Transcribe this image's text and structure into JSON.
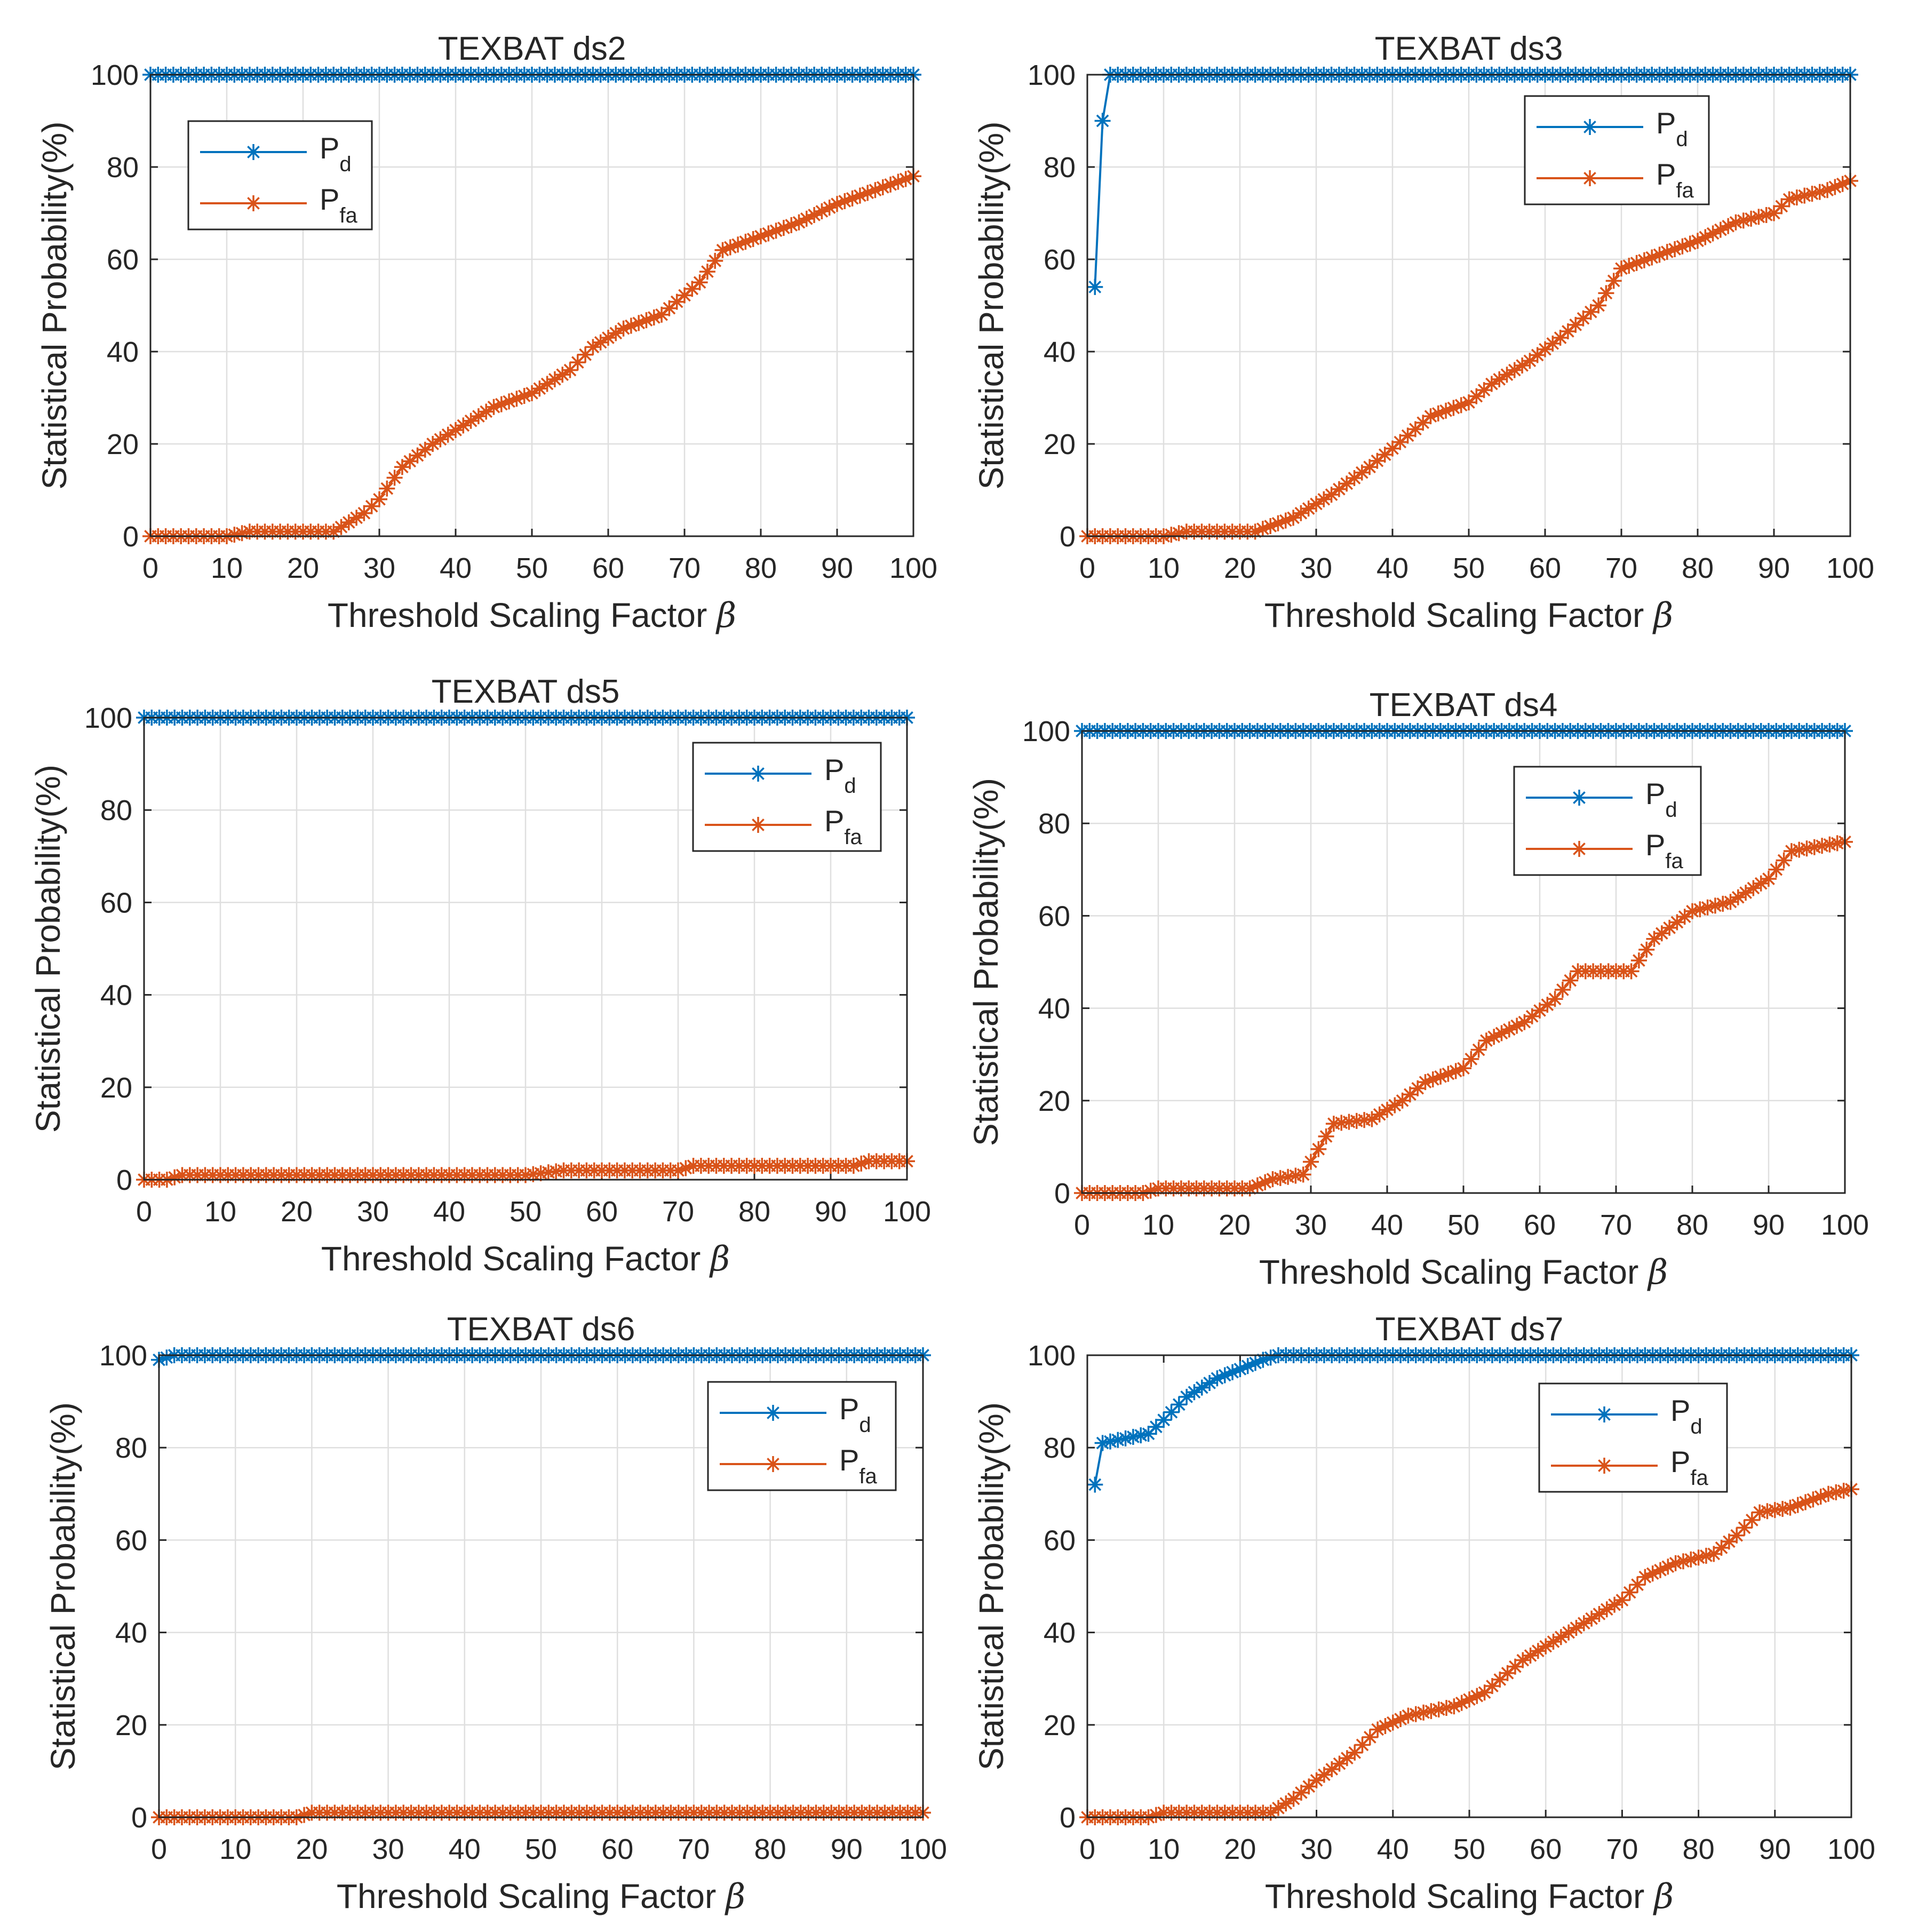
{
  "figure": {
    "accent_colors": {
      "pd": "#0072BD",
      "pfa": "#D95319"
    },
    "marker_icon": "asterisk-marker-icon"
  },
  "chart_data": [
    {
      "type": "line",
      "title": "TEXBAT ds2",
      "xlabel": "Threshold Scaling Factor",
      "xlabel_symbol": "β",
      "ylabel": "Statistical Probability(%)",
      "xlim": [
        0,
        100
      ],
      "ylim": [
        0,
        100
      ],
      "xticks": [
        "0",
        "10",
        "20",
        "30",
        "40",
        "50",
        "60",
        "70",
        "80",
        "90",
        "100"
      ],
      "yticks": [
        "0",
        "20",
        "40",
        "60",
        "80",
        "100"
      ],
      "grid": true,
      "legend_position": "top-left",
      "series": [
        {
          "name": "P",
          "subscript": "d",
          "color": "#0072BD",
          "x": [
            0,
            100
          ],
          "y": [
            100,
            100
          ]
        },
        {
          "name": "P",
          "subscript": "fa",
          "color": "#D95319",
          "x": [
            0,
            10,
            13,
            24,
            28,
            30,
            33,
            37,
            40,
            45,
            50,
            55,
            58,
            62,
            67,
            72,
            75,
            80,
            85,
            90,
            95,
            100
          ],
          "y": [
            0,
            0,
            1,
            1,
            5,
            8,
            15,
            20,
            23,
            28,
            31,
            36,
            41,
            45,
            48,
            55,
            62,
            65,
            68,
            72,
            75,
            78
          ]
        }
      ]
    },
    {
      "type": "line",
      "title": "TEXBAT ds3",
      "xlabel": "Threshold Scaling Factor",
      "xlabel_symbol": "β",
      "ylabel": "Statistical Probability(%)",
      "xlim": [
        0,
        100
      ],
      "ylim": [
        0,
        100
      ],
      "xticks": [
        "0",
        "10",
        "20",
        "30",
        "40",
        "50",
        "60",
        "70",
        "80",
        "90",
        "100"
      ],
      "yticks": [
        "0",
        "20",
        "40",
        "60",
        "80",
        "100"
      ],
      "grid": true,
      "legend_position": "top-right",
      "series": [
        {
          "name": "P",
          "subscript": "d",
          "color": "#0072BD",
          "x": [
            1,
            2,
            3,
            100
          ],
          "y": [
            54,
            90,
            100,
            100
          ]
        },
        {
          "name": "P",
          "subscript": "fa",
          "color": "#D95319",
          "x": [
            0,
            10,
            13,
            22,
            27,
            32,
            37,
            40,
            45,
            50,
            53,
            58,
            62,
            67,
            70,
            75,
            80,
            85,
            90,
            92,
            97,
            100
          ],
          "y": [
            0,
            0,
            1,
            1,
            4,
            9,
            15,
            19,
            26,
            29,
            33,
            38,
            43,
            50,
            58,
            61,
            64,
            68,
            70,
            73,
            75,
            77
          ]
        }
      ]
    },
    {
      "type": "line",
      "title": "TEXBAT ds5",
      "xlabel": "Threshold Scaling Factor",
      "xlabel_symbol": "β",
      "ylabel": "Statistical Probability(%)",
      "xlim": [
        0,
        100
      ],
      "ylim": [
        0,
        100
      ],
      "xticks": [
        "0",
        "10",
        "20",
        "30",
        "40",
        "50",
        "60",
        "70",
        "80",
        "90",
        "100"
      ],
      "yticks": [
        "0",
        "20",
        "40",
        "60",
        "80",
        "100"
      ],
      "grid": true,
      "legend_position": "top-right",
      "series": [
        {
          "name": "P",
          "subscript": "d",
          "color": "#0072BD",
          "x": [
            0,
            100
          ],
          "y": [
            100,
            100
          ]
        },
        {
          "name": "P",
          "subscript": "fa",
          "color": "#D95319",
          "x": [
            0,
            3,
            5,
            50,
            55,
            70,
            72,
            93,
            95,
            100
          ],
          "y": [
            0,
            0,
            1,
            1,
            2,
            2,
            3,
            3,
            4,
            4
          ]
        }
      ]
    },
    {
      "type": "line",
      "title": "TEXBAT ds4",
      "xlabel": "Threshold Scaling Factor",
      "xlabel_symbol": "β",
      "ylabel": "Statistical Probability(%)",
      "xlim": [
        0,
        100
      ],
      "ylim": [
        0,
        100
      ],
      "xticks": [
        "0",
        "10",
        "20",
        "30",
        "40",
        "50",
        "60",
        "70",
        "80",
        "90",
        "100"
      ],
      "yticks": [
        "0",
        "20",
        "40",
        "60",
        "80",
        "100"
      ],
      "grid": true,
      "legend_position": "top-right",
      "series": [
        {
          "name": "P",
          "subscript": "d",
          "color": "#0072BD",
          "x": [
            0,
            100
          ],
          "y": [
            100,
            100
          ]
        },
        {
          "name": "P",
          "subscript": "fa",
          "color": "#D95319",
          "x": [
            0,
            8,
            10,
            22,
            25,
            29,
            33,
            38,
            42,
            45,
            50,
            53,
            58,
            62,
            65,
            72,
            75,
            80,
            85,
            90,
            93,
            100
          ],
          "y": [
            0,
            0,
            1,
            1,
            3,
            4,
            15,
            16,
            20,
            24,
            27,
            33,
            37,
            42,
            48,
            48,
            55,
            61,
            63,
            68,
            74,
            76
          ]
        }
      ]
    },
    {
      "type": "line",
      "title": "TEXBAT ds6",
      "xlabel": "Threshold Scaling Factor",
      "xlabel_symbol": "β",
      "ylabel": "Statistical Probability(%)",
      "xlim": [
        0,
        100
      ],
      "ylim": [
        0,
        100
      ],
      "xticks": [
        "0",
        "10",
        "20",
        "30",
        "40",
        "50",
        "60",
        "70",
        "80",
        "90",
        "100"
      ],
      "yticks": [
        "0",
        "20",
        "40",
        "60",
        "80",
        "100"
      ],
      "grid": true,
      "legend_position": "top-right",
      "series": [
        {
          "name": "P",
          "subscript": "d",
          "color": "#0072BD",
          "x": [
            0,
            2,
            100
          ],
          "y": [
            99,
            100,
            100
          ]
        },
        {
          "name": "P",
          "subscript": "fa",
          "color": "#D95319",
          "x": [
            0,
            18,
            20,
            100
          ],
          "y": [
            0,
            0,
            1,
            1
          ]
        }
      ]
    },
    {
      "type": "line",
      "title": "TEXBAT ds7",
      "xlabel": "Threshold Scaling Factor",
      "xlabel_symbol": "β",
      "ylabel": "Statistical Probability(%)",
      "xlim": [
        0,
        100
      ],
      "ylim": [
        0,
        100
      ],
      "xticks": [
        "0",
        "10",
        "20",
        "30",
        "40",
        "50",
        "60",
        "70",
        "80",
        "90",
        "100"
      ],
      "yticks": [
        "0",
        "20",
        "40",
        "60",
        "80",
        "100"
      ],
      "grid": true,
      "legend_position": "top-right",
      "series": [
        {
          "name": "P",
          "subscript": "d",
          "color": "#0072BD",
          "x": [
            1,
            2,
            5,
            8,
            10,
            13,
            17,
            20,
            23,
            25,
            100
          ],
          "y": [
            72,
            81,
            82,
            83,
            86,
            91,
            95,
            97,
            99,
            100,
            100
          ]
        },
        {
          "name": "P",
          "subscript": "fa",
          "color": "#D95319",
          "x": [
            0,
            8,
            10,
            24,
            27,
            30,
            35,
            38,
            42,
            48,
            52,
            57,
            62,
            67,
            70,
            73,
            77,
            82,
            85,
            88,
            92,
            97,
            100
          ],
          "y": [
            0,
            0,
            1,
            1,
            4,
            8,
            14,
            19,
            22,
            24,
            27,
            34,
            39,
            44,
            47,
            52,
            55,
            57,
            61,
            66,
            67,
            70,
            71
          ]
        }
      ]
    }
  ]
}
